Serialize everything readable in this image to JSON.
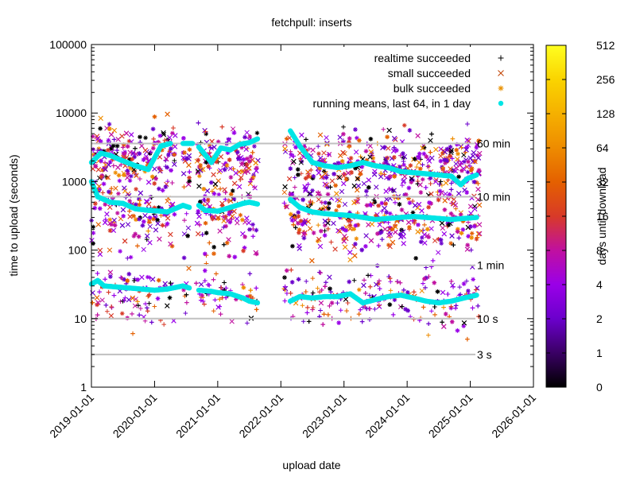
{
  "chart_data": {
    "type": "scatter",
    "title": "fetchpull: inserts",
    "xlabel": "upload date",
    "ylabel": "time to upload (seconds)",
    "yscale": "log",
    "ylim": [
      1,
      100000
    ],
    "y_tick_labels": [
      {
        "value": 1,
        "label": "1"
      },
      {
        "value": 10,
        "label": "10"
      },
      {
        "value": 100,
        "label": "100"
      },
      {
        "value": 1000,
        "label": "1000"
      },
      {
        "value": 10000,
        "label": "10000"
      },
      {
        "value": 100000,
        "label": "100000"
      }
    ],
    "x_tick_labels": [
      "2019-01-01",
      "2020-01-01",
      "2021-01-01",
      "2022-01-01",
      "2023-01-01",
      "2024-01-01",
      "2025-01-01",
      "2026-01-01"
    ],
    "xlim": [
      "2019-01-01",
      "2026-01-01"
    ],
    "reference_lines": [
      {
        "value": 3,
        "label": "3 s"
      },
      {
        "value": 10,
        "label": "10 s"
      },
      {
        "value": 60,
        "label": "1 min"
      },
      {
        "value": 600,
        "label": "10 min"
      },
      {
        "value": 3600,
        "label": "60 min"
      }
    ],
    "legend_position": "top-right",
    "legend": [
      {
        "label": "realtime succeeded",
        "marker": "plus",
        "color": "#000000"
      },
      {
        "label": "small succeeded",
        "marker": "cross",
        "color": "#c04000"
      },
      {
        "label": "bulk succeeded",
        "marker": "star",
        "color": "#e89000"
      },
      {
        "label": "running means, last 64, in 1 day",
        "marker": "dot",
        "color": "#00e5e5"
      }
    ],
    "colorbar": {
      "label": "days until download",
      "ticks": [
        "0",
        "1",
        "2",
        "4",
        "8",
        "16",
        "32",
        "64",
        "128",
        "256",
        "512"
      ],
      "colors": [
        "#000000",
        "#3a0064",
        "#6b00cc",
        "#9a00e8",
        "#c010a0",
        "#d83a28",
        "#e46000",
        "#ee8c00",
        "#f5b000",
        "#fad400",
        "#ffff20"
      ]
    },
    "data_gaps_years": [
      [
        2020.33,
        2020.45
      ],
      [
        2020.56,
        2020.66
      ],
      [
        2021.64,
        2022.05
      ],
      [
        2022.1,
        2022.13
      ],
      [
        2022.53,
        2022.58
      ],
      [
        2023.12,
        2023.15
      ]
    ],
    "series": [
      {
        "name": "running means: bulk",
        "points": [
          [
            2019.0,
            1900
          ],
          [
            2019.15,
            2600
          ],
          [
            2019.3,
            2400
          ],
          [
            2019.5,
            2000
          ],
          [
            2019.7,
            1700
          ],
          [
            2019.9,
            1500
          ],
          [
            2020.1,
            3300
          ],
          [
            2020.25,
            3600
          ],
          [
            2020.45,
            3600
          ],
          [
            2020.6,
            3600
          ],
          [
            2020.7,
            3200
          ],
          [
            2020.9,
            1900
          ],
          [
            2021.05,
            3100
          ],
          [
            2021.2,
            2900
          ],
          [
            2021.35,
            3500
          ],
          [
            2021.5,
            3700
          ],
          [
            2021.63,
            4200
          ],
          [
            2022.15,
            5500
          ],
          [
            2022.3,
            3300
          ],
          [
            2022.5,
            1900
          ],
          [
            2022.7,
            1700
          ],
          [
            2022.9,
            1600
          ],
          [
            2023.1,
            1700
          ],
          [
            2023.3,
            1900
          ],
          [
            2023.5,
            1700
          ],
          [
            2023.7,
            1600
          ],
          [
            2023.9,
            1400
          ],
          [
            2024.1,
            1350
          ],
          [
            2024.3,
            1300
          ],
          [
            2024.5,
            1250
          ],
          [
            2024.7,
            1200
          ],
          [
            2024.85,
            900
          ],
          [
            2024.95,
            1100
          ],
          [
            2025.1,
            1250
          ]
        ]
      },
      {
        "name": "running means: small",
        "points": [
          [
            2019.0,
            1000
          ],
          [
            2019.1,
            600
          ],
          [
            2019.3,
            500
          ],
          [
            2019.5,
            480
          ],
          [
            2019.7,
            400
          ],
          [
            2019.9,
            380
          ],
          [
            2020.1,
            370
          ],
          [
            2020.2,
            360
          ],
          [
            2020.45,
            450
          ],
          [
            2020.55,
            420
          ],
          [
            2020.7,
            450
          ],
          [
            2020.8,
            380
          ],
          [
            2021.0,
            370
          ],
          [
            2021.2,
            420
          ],
          [
            2021.4,
            480
          ],
          [
            2021.5,
            500
          ],
          [
            2021.63,
            470
          ],
          [
            2022.15,
            550
          ],
          [
            2022.3,
            420
          ],
          [
            2022.5,
            360
          ],
          [
            2022.7,
            340
          ],
          [
            2022.9,
            330
          ],
          [
            2023.1,
            320
          ],
          [
            2023.3,
            300
          ],
          [
            2023.5,
            280
          ],
          [
            2023.7,
            290
          ],
          [
            2023.9,
            300
          ],
          [
            2024.1,
            310
          ],
          [
            2024.3,
            300
          ],
          [
            2024.5,
            290
          ],
          [
            2024.7,
            280
          ],
          [
            2024.9,
            290
          ],
          [
            2025.1,
            300
          ]
        ]
      },
      {
        "name": "running means: realtime",
        "points": [
          [
            2019.0,
            32
          ],
          [
            2019.1,
            36
          ],
          [
            2019.2,
            30
          ],
          [
            2019.4,
            29
          ],
          [
            2019.6,
            28
          ],
          [
            2019.8,
            27
          ],
          [
            2020.0,
            26
          ],
          [
            2020.2,
            27
          ],
          [
            2020.45,
            30
          ],
          [
            2020.55,
            28
          ],
          [
            2020.7,
            26
          ],
          [
            2020.9,
            25
          ],
          [
            2021.0,
            24
          ],
          [
            2021.2,
            23
          ],
          [
            2021.4,
            20
          ],
          [
            2021.5,
            18
          ],
          [
            2021.63,
            17
          ],
          [
            2022.15,
            18
          ],
          [
            2022.3,
            21
          ],
          [
            2022.5,
            20
          ],
          [
            2022.7,
            21
          ],
          [
            2022.9,
            21
          ],
          [
            2023.1,
            23
          ],
          [
            2023.3,
            17
          ],
          [
            2023.5,
            19
          ],
          [
            2023.7,
            21
          ],
          [
            2023.9,
            22
          ],
          [
            2024.1,
            20
          ],
          [
            2024.3,
            18
          ],
          [
            2024.5,
            17
          ],
          [
            2024.7,
            18
          ],
          [
            2024.9,
            20
          ],
          [
            2025.1,
            22
          ]
        ]
      }
    ]
  }
}
